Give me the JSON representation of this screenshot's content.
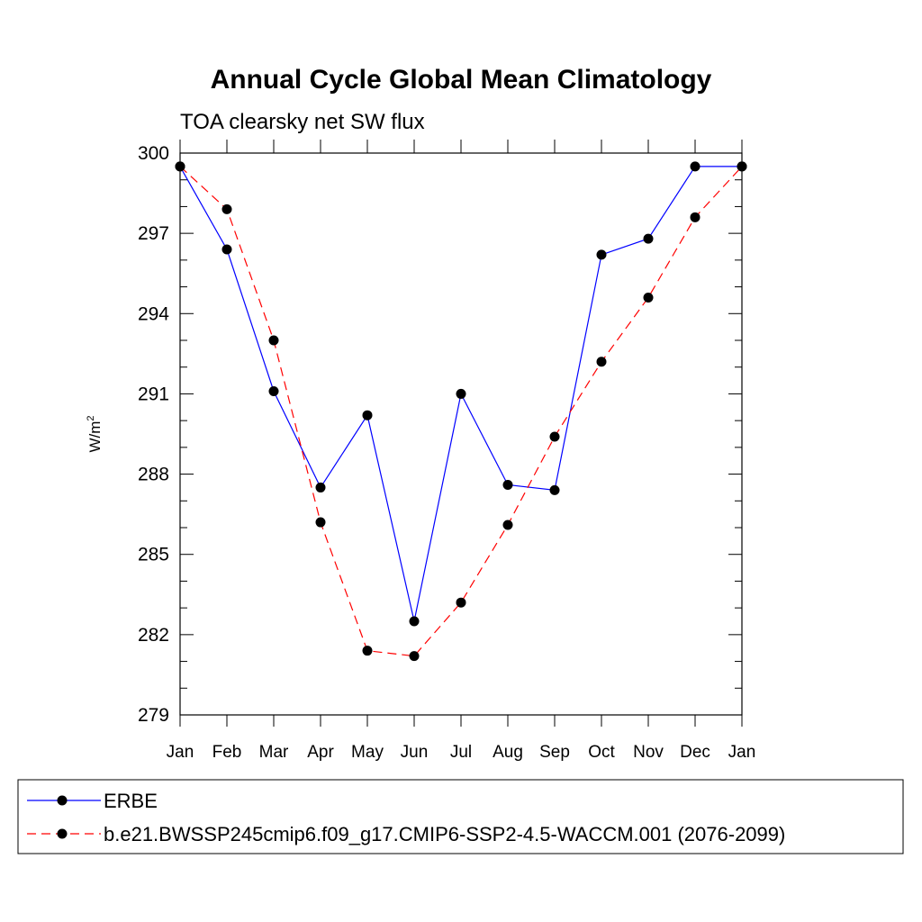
{
  "chart_data": {
    "type": "line",
    "title": "Annual Cycle Global Mean Climatology",
    "subtitle": "TOA clearsky net SW flux",
    "ylabel_base": "W/m",
    "ylabel_sup": "2",
    "categories": [
      "Jan",
      "Feb",
      "Mar",
      "Apr",
      "May",
      "Jun",
      "Jul",
      "Aug",
      "Sep",
      "Oct",
      "Nov",
      "Dec",
      "Jan"
    ],
    "yticks": [
      "300",
      "297",
      "294",
      "291",
      "288",
      "285",
      "282",
      "279"
    ],
    "ylim": [
      279,
      300
    ],
    "series": [
      {
        "name": "ERBE",
        "color": "#0000ff",
        "style": "solid",
        "values": [
          299.5,
          296.4,
          291.1,
          287.5,
          290.2,
          282.5,
          291.0,
          287.6,
          287.4,
          296.2,
          296.8,
          299.5,
          299.5
        ]
      },
      {
        "name": "b.e21.BWSSP245cmip6.f09_g17.CMIP6-SSP2-4.5-WACCM.001 (2076-2099)",
        "color": "#ff0000",
        "style": "dashed",
        "values": [
          299.5,
          297.9,
          293.0,
          286.2,
          281.4,
          281.2,
          283.2,
          286.1,
          289.4,
          292.2,
          294.6,
          297.6,
          299.5
        ]
      }
    ],
    "grid": false,
    "legend_position": "bottom"
  }
}
